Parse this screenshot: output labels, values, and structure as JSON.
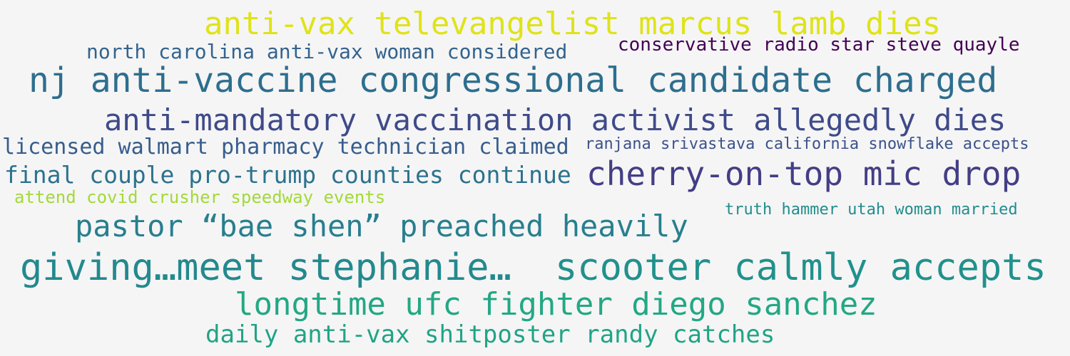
{
  "words": [
    {
      "text": "anti-vax televangelist marcus lamb dies",
      "color": "#dfe318"
    },
    {
      "text": "north carolina anti-vax woman considered",
      "color": "#33638d"
    },
    {
      "text": "conservative radio star steve quayle",
      "color": "#440154"
    },
    {
      "text": "nj anti-vaccine congressional candidate charged",
      "color": "#2d6e8e"
    },
    {
      "text": "anti-mandatory vaccination activist allegedly dies",
      "color": "#3e4a89"
    },
    {
      "text": "licensed walmart pharmacy technician claimed",
      "color": "#365d8d"
    },
    {
      "text": "ranjana srivastava california snowflake accepts",
      "color": "#3b528b"
    },
    {
      "text": "final couple pro-trump counties continue",
      "color": "#2c728e"
    },
    {
      "text": "cherry-on-top mic drop",
      "color": "#433e85"
    },
    {
      "text": "attend covid crusher speedway events",
      "color": "#a2da37"
    },
    {
      "text": "pastor “bae shen” preached heavily",
      "color": "#277f8e"
    },
    {
      "text": "truth hammer utah woman married",
      "color": "#228c8d"
    },
    {
      "text": "giving…meet stephanie…",
      "color": "#23898e"
    },
    {
      "text": "scooter calmly accepts",
      "color": "#21918c"
    },
    {
      "text": "longtime ufc fighter diego sanchez",
      "color": "#22a884"
    },
    {
      "text": "daily anti-vax shitposter randy catches",
      "color": "#20a486"
    }
  ]
}
